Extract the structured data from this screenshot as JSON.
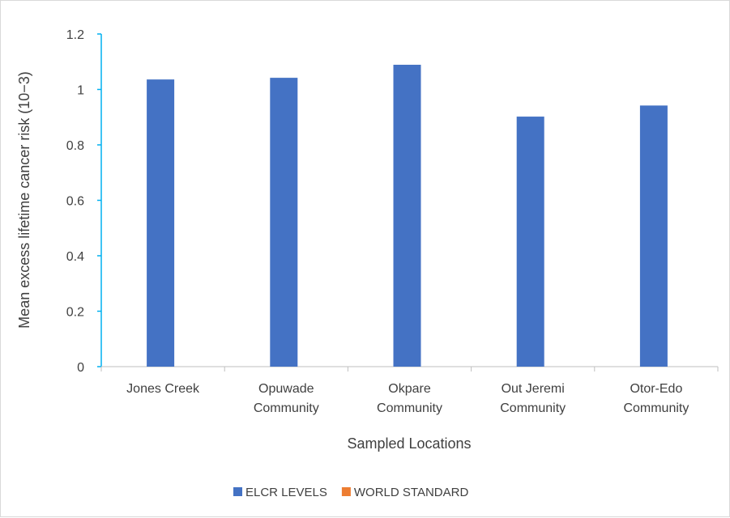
{
  "chart_data": {
    "type": "bar",
    "title": "",
    "xlabel": "Sampled Locations",
    "ylabel": "Mean excess lifetime cancer risk (10−3)",
    "categories": [
      [
        "Jones Creek"
      ],
      [
        "Opuwade",
        "Community"
      ],
      [
        "Okpare",
        "Community"
      ],
      [
        "Out Jeremi",
        "Community"
      ],
      [
        "Otor-Edo",
        "Community"
      ]
    ],
    "series": [
      {
        "name": "ELCR LEVELS",
        "color": "#4472c4",
        "values": [
          1.036,
          1.042,
          1.089,
          0.902,
          0.942
        ]
      },
      {
        "name": "WORLD STANDARD",
        "color": "#ed7d31",
        "values": [
          0,
          0,
          0,
          0,
          0
        ]
      }
    ],
    "ylim": [
      0,
      1.2
    ],
    "yticks": [
      0,
      0.2,
      0.4,
      0.6,
      0.8,
      1,
      1.2
    ],
    "grid": false,
    "legend_position": "bottom"
  }
}
